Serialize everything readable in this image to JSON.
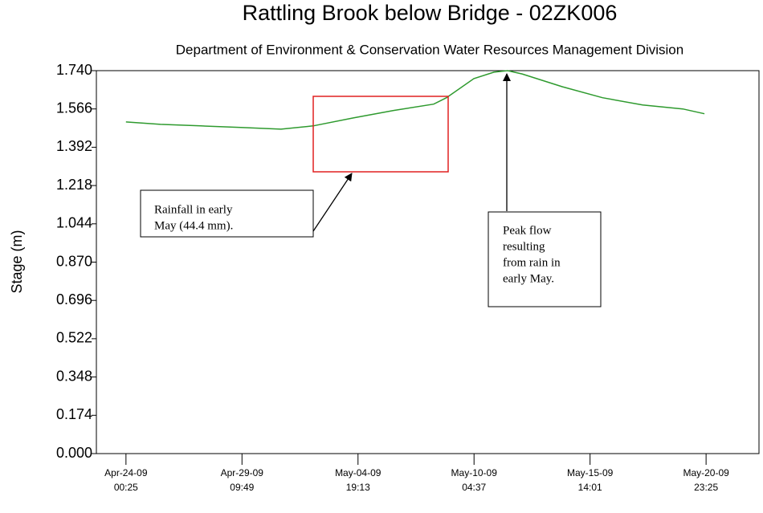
{
  "chart_data": {
    "type": "line",
    "title": "Rattling Brook below Bridge - 02ZK006",
    "subtitle": "Department of Environment & Conservation Water Resources Management Division",
    "y_label": "Stage (m)",
    "x": [
      "2009-04-24T00:25",
      "2009-04-25T14:55",
      "2009-04-27T11:45",
      "2009-04-29T08:30",
      "2009-05-01T05:20",
      "2009-05-02T17:10",
      "2009-05-04T14:00",
      "2009-05-06T10:50",
      "2009-05-08T07:40",
      "2009-05-08T21:55",
      "2009-05-10T04:25",
      "2009-05-11T02:50",
      "2009-05-11T18:00",
      "2009-05-12T10:15",
      "2009-05-14T07:00",
      "2009-05-16T03:50",
      "2009-05-18T00:45",
      "2009-05-19T21:30",
      "2009-05-20T21:35"
    ],
    "series": [
      {
        "color": "#2e9a2e",
        "values": [
          1.507,
          1.496,
          1.489,
          1.482,
          1.474,
          1.489,
          1.525,
          1.559,
          1.588,
          1.617,
          1.704,
          1.733,
          1.74,
          1.725,
          1.667,
          1.617,
          1.584,
          1.566,
          1.544
        ]
      }
    ],
    "xlim": [
      "2009-04-22T15:25",
      "2009-05-23T10:25"
    ],
    "xticks": [
      {
        "value": "2009-04-24T00:25",
        "label": [
          "Apr-24-09",
          "00:25"
        ]
      },
      {
        "value": "2009-04-29T09:49",
        "label": [
          "Apr-29-09",
          "09:49"
        ]
      },
      {
        "value": "2009-05-04T19:13",
        "label": [
          "May-04-09",
          "19:13"
        ]
      },
      {
        "value": "2009-05-10T04:37",
        "label": [
          "May-10-09",
          "04:37"
        ]
      },
      {
        "value": "2009-05-15T14:01",
        "label": [
          "May-15-09",
          "14:01"
        ]
      },
      {
        "value": "2009-05-20T23:25",
        "label": [
          "May-20-09",
          "23:25"
        ]
      }
    ],
    "ylim": [
      0,
      1.74
    ],
    "yticks": [
      {
        "value": 0,
        "label": "0.000"
      },
      0.174,
      0.348,
      0.522,
      0.696,
      {
        "value": 0.87,
        "label": "0.870"
      },
      1.044,
      1.218,
      1.392,
      1.566,
      {
        "value": 1.74,
        "label": "1.740"
      }
    ],
    "annotations": [
      {
        "lines": [
          "Rainfall in early",
          "May (44.4 mm)."
        ]
      },
      {
        "lines": [
          "Peak flow",
          "resulting",
          "from rain in",
          "early May."
        ]
      }
    ]
  }
}
